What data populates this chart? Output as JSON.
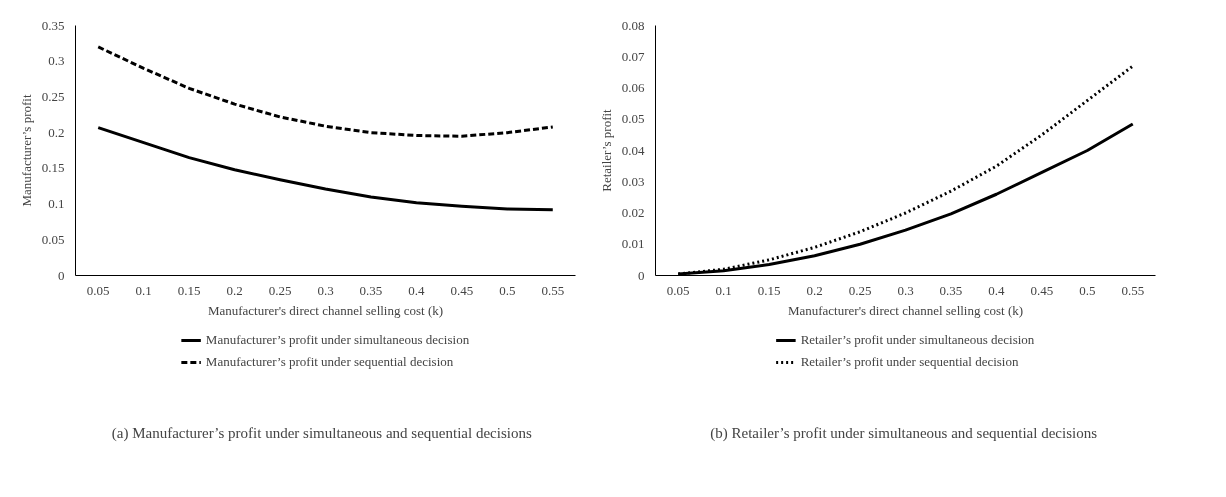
{
  "chart_data": [
    {
      "type": "line",
      "title": "(a)   Manufacturer’s profit under simultaneous and sequential decisions",
      "xlabel": "Manufacturer's direct channel selling cost (k)",
      "ylabel": "Manufacturer’s profit",
      "categories": [
        "0.05",
        "0.1",
        "0.15",
        "0.2",
        "0.25",
        "0.3",
        "0.35",
        "0.4",
        "0.45",
        "0.5",
        "0.55"
      ],
      "series": [
        {
          "name": "Manufacturer’s profit under simultaneous decision",
          "color": "#000000",
          "line_style": "solid",
          "values": [
            0.207,
            0.186,
            0.165,
            0.148,
            0.134,
            0.121,
            0.11,
            0.102,
            0.097,
            0.093,
            0.092
          ]
        },
        {
          "name": "Manufacturer’s profit under sequential decision",
          "color": "#000000",
          "line_style": "dashed",
          "values": [
            0.32,
            0.29,
            0.262,
            0.24,
            0.222,
            0.209,
            0.2,
            0.196,
            0.195,
            0.2,
            0.208
          ]
        }
      ],
      "ylim": [
        0,
        0.35
      ],
      "yticks": [
        0,
        0.05,
        0.1,
        0.15,
        0.2,
        0.25,
        0.3,
        0.35
      ],
      "grid": false,
      "legend": "bottom",
      "marker": "none"
    },
    {
      "type": "line",
      "title": "(b)  Retailer’s profit under simultaneous and sequential decisions",
      "xlabel": "Manufacturer's direct channel selling cost (k)",
      "ylabel": "Retailer’s profit",
      "categories": [
        "0.05",
        "0.1",
        "0.15",
        "0.2",
        "0.25",
        "0.3",
        "0.35",
        "0.4",
        "0.45",
        "0.5",
        "0.55"
      ],
      "series": [
        {
          "name": "Retailer’s profit under simultaneous decision",
          "color": "#000000",
          "line_style": "solid",
          "values": [
            0.0005,
            0.0015,
            0.0035,
            0.0063,
            0.01,
            0.0145,
            0.0197,
            0.026,
            0.033,
            0.04,
            0.0485
          ]
        },
        {
          "name": "Retailer’s profit under sequential decision",
          "color": "#000000",
          "line_style": "dotted",
          "values": [
            0.0005,
            0.002,
            0.005,
            0.009,
            0.014,
            0.02,
            0.027,
            0.035,
            0.045,
            0.056,
            0.067
          ]
        }
      ],
      "ylim": [
        0,
        0.08
      ],
      "yticks": [
        0,
        0.01,
        0.02,
        0.03,
        0.04,
        0.05,
        0.06,
        0.07,
        0.08
      ],
      "grid": false,
      "legend": "bottom",
      "marker": "none"
    }
  ]
}
